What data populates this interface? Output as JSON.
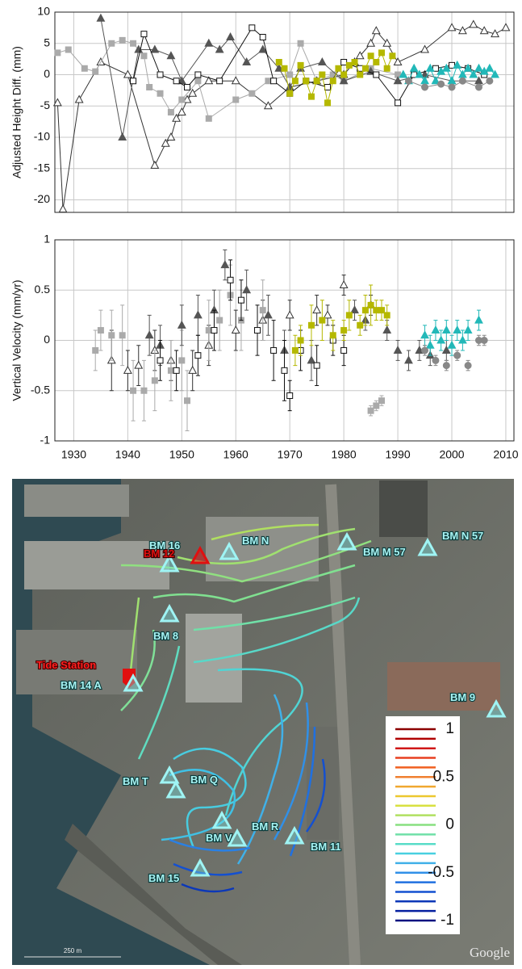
{
  "chart_data": [
    {
      "type": "line",
      "ylabel": "Adjusted Height Diff. (mm)",
      "xlim": [
        1926.5,
        2011.5
      ],
      "xticks": [
        1930,
        1940,
        1950,
        1960,
        1970,
        1980,
        1990,
        2000,
        2010
      ],
      "ylim": [
        -22,
        10
      ],
      "yticks": [
        -20,
        -15,
        -10,
        -5,
        0,
        5,
        10
      ],
      "grid": true,
      "series": [
        {
          "color": "#333333",
          "marker": "triangle-open",
          "x": [
            1927,
            1928,
            1931,
            1935,
            1940,
            1945,
            1947,
            1948,
            1949,
            1950,
            1951,
            1952,
            1955,
            1960,
            1966,
            1970,
            1975,
            1980,
            1982,
            1983,
            1985,
            1986,
            1988,
            1990,
            1995,
            2000,
            2002,
            2004,
            2006,
            2008,
            2010
          ],
          "values": [
            -4.5,
            -21.5,
            -4,
            2,
            0,
            -14.5,
            -11,
            -10,
            -7,
            -6,
            -4,
            -3,
            -1,
            -1,
            -5,
            -2,
            -1,
            0,
            2,
            3,
            5,
            7,
            5,
            2,
            4,
            7.5,
            7,
            8,
            7,
            6.5,
            7.5
          ]
        },
        {
          "color": "#aaaaaa",
          "marker": "square",
          "x": [
            1927,
            1929,
            1932,
            1934,
            1937,
            1939,
            1941,
            1943,
            1944,
            1946,
            1948,
            1950,
            1953,
            1955,
            1960,
            1963,
            1966,
            1970,
            1972,
            1975,
            1978,
            1980,
            1985,
            1990
          ],
          "values": [
            3.5,
            4,
            1,
            0.5,
            5,
            5.5,
            5,
            3,
            -2,
            -3,
            -6,
            -4,
            -1,
            -7,
            -4,
            -3,
            -1,
            0,
            5,
            -1,
            0,
            -1,
            1,
            0
          ]
        },
        {
          "color": "#555555",
          "marker": "triangle",
          "x": [
            1935,
            1939,
            1942,
            1945,
            1948,
            1950,
            1955,
            1957,
            1959,
            1962,
            1965,
            1968,
            1970,
            1972,
            1976,
            1980,
            1985,
            1990,
            1995,
            2000,
            2005
          ],
          "values": [
            9,
            -10,
            4,
            4,
            3,
            -1,
            5,
            4,
            6,
            2,
            4,
            1,
            -2,
            1,
            2,
            -1,
            0.5,
            -1,
            0,
            -1,
            -1
          ]
        },
        {
          "color": "#111111",
          "marker": "square-open",
          "x": [
            1941,
            1943,
            1946,
            1949,
            1951,
            1953,
            1957,
            1963,
            1965,
            1967,
            1970,
            1973,
            1977,
            1980,
            1983,
            1986,
            1990,
            1993,
            1997,
            2000,
            2003,
            2006
          ],
          "values": [
            -1,
            6.5,
            0,
            -1,
            -2,
            0,
            -1,
            7.5,
            6,
            -1,
            -3,
            -1,
            -2,
            2,
            1,
            0,
            -4.5,
            0,
            1,
            1.5,
            1,
            0
          ]
        },
        {
          "color": "#b5b800",
          "marker": "square",
          "x": [
            1968,
            1969,
            1970,
            1971,
            1972,
            1973,
            1974,
            1975,
            1976,
            1977,
            1978,
            1979,
            1980,
            1981,
            1982,
            1983,
            1984,
            1985,
            1986,
            1987,
            1988,
            1989
          ],
          "values": [
            2,
            1,
            -3,
            -1,
            1.5,
            -1,
            -3.5,
            -1,
            0,
            -4.5,
            -1,
            1,
            0,
            1.5,
            2,
            0,
            1,
            3,
            2,
            3.5,
            1,
            3
          ]
        },
        {
          "color": "#22b8b8",
          "marker": "triangle",
          "x": [
            1991,
            1992,
            1993,
            1994,
            1995,
            1996,
            1997,
            1998,
            1999,
            2000,
            2001,
            2002,
            2003,
            2004,
            2005,
            2006,
            2007,
            2008
          ],
          "values": [
            0,
            -1,
            1,
            0,
            -1,
            1,
            -1,
            0.5,
            1,
            -1,
            1.5,
            0,
            1,
            0,
            1,
            0.5,
            1,
            0
          ]
        },
        {
          "color": "#888888",
          "marker": "circle",
          "x": [
            1992,
            1995,
            1998,
            2000,
            2002,
            2005,
            2007
          ],
          "values": [
            -1,
            -2,
            -1.5,
            -2,
            -1,
            -2,
            -1
          ]
        }
      ]
    },
    {
      "type": "errorbar",
      "ylabel": "Vertical Velocity (mm/yr)",
      "xlim": [
        1926.5,
        2011.5
      ],
      "xticks": [
        1930,
        1940,
        1950,
        1960,
        1970,
        1980,
        1990,
        2000,
        2010
      ],
      "ylim": [
        -1,
        1
      ],
      "yticks": [
        -1,
        -0.5,
        0,
        0.5,
        1
      ],
      "grid": true,
      "series": [
        {
          "color": "#333333",
          "marker": "triangle-open",
          "x": [
            1937,
            1940,
            1942,
            1945,
            1948,
            1952,
            1955,
            1960,
            1965,
            1970,
            1975,
            1977,
            1980,
            1985
          ],
          "values": [
            -0.2,
            -0.3,
            -0.25,
            -0.1,
            -0.2,
            -0.3,
            -0.05,
            0.1,
            0.2,
            0.25,
            0.3,
            0.25,
            0.55,
            0.35
          ],
          "errors": [
            0.3,
            0.2,
            0.2,
            0.2,
            0.2,
            0.2,
            0.2,
            0.2,
            0.2,
            0.15,
            0.15,
            0.1,
            0.1,
            0.1
          ]
        },
        {
          "color": "#aaaaaa",
          "marker": "square",
          "x": [
            1934,
            1935,
            1937,
            1939,
            1941,
            1943,
            1945,
            1948,
            1950,
            1951,
            1955,
            1957,
            1959,
            1961,
            1965,
            1985,
            1986,
            1987
          ],
          "values": [
            -0.1,
            0.1,
            0.05,
            0.05,
            -0.5,
            -0.5,
            -0.4,
            -0.3,
            -0.2,
            -0.6,
            0.1,
            0.2,
            0.45,
            0.2,
            0.3,
            -0.7,
            -0.65,
            -0.6
          ],
          "errors": [
            0.2,
            0.2,
            0.25,
            0.3,
            0.3,
            0.3,
            0.3,
            0.3,
            0.3,
            0.3,
            0.3,
            0.3,
            0.3,
            0.3,
            0.3,
            0.05,
            0.05,
            0.05
          ]
        },
        {
          "color": "#555555",
          "marker": "triangle",
          "x": [
            1944,
            1946,
            1950,
            1953,
            1956,
            1958,
            1962,
            1966,
            1969,
            1974,
            1982,
            1984,
            1988,
            1990,
            1992,
            1994,
            1996,
            1999
          ],
          "values": [
            0.05,
            -0.05,
            0.15,
            0.25,
            0.3,
            0.75,
            0.5,
            0.25,
            -0.1,
            -0.2,
            0.3,
            0.2,
            0.1,
            -0.1,
            -0.2,
            -0.1,
            -0.15,
            -0.1
          ],
          "errors": [
            0.2,
            0.2,
            0.2,
            0.2,
            0.2,
            0.15,
            0.2,
            0.2,
            0.2,
            0.2,
            0.1,
            0.1,
            0.1,
            0.1,
            0.1,
            0.1,
            0.1,
            0.1
          ]
        },
        {
          "color": "#111111",
          "marker": "square-open",
          "x": [
            1946,
            1949,
            1953,
            1956,
            1959,
            1961,
            1964,
            1967,
            1969,
            1970,
            1972,
            1975,
            1978,
            1980
          ],
          "values": [
            -0.2,
            -0.3,
            -0.15,
            0.1,
            0.6,
            0.4,
            0.1,
            -0.1,
            -0.3,
            -0.55,
            -0.1,
            -0.25,
            0,
            -0.1
          ],
          "errors": [
            0.2,
            0.2,
            0.2,
            0.2,
            0.2,
            0.2,
            0.25,
            0.3,
            0.3,
            0.15,
            0.2,
            0.2,
            0.15,
            0.15
          ]
        },
        {
          "color": "#b5b800",
          "marker": "square",
          "x": [
            1971,
            1972,
            1974,
            1976,
            1978,
            1980,
            1981,
            1983,
            1984,
            1985,
            1986,
            1987,
            1988
          ],
          "values": [
            -0.1,
            0,
            0.15,
            0.2,
            0.05,
            0.1,
            0.25,
            0.15,
            0.3,
            0.35,
            0.3,
            0.3,
            0.25
          ],
          "errors": [
            0.15,
            0.15,
            0.2,
            0.2,
            0.15,
            0.1,
            0.15,
            0.1,
            0.15,
            0.2,
            0.1,
            0.1,
            0.1
          ]
        },
        {
          "color": "#22b8b8",
          "marker": "triangle",
          "x": [
            1995,
            1996,
            1997,
            1998,
            1999,
            2000,
            2001,
            2002,
            2003,
            2005
          ],
          "values": [
            0.05,
            -0.05,
            0.1,
            0,
            0.1,
            -0.05,
            0.1,
            0,
            0.1,
            0.2
          ],
          "errors": [
            0.1,
            0.1,
            0.1,
            0.1,
            0.1,
            0.1,
            0.1,
            0.1,
            0.1,
            0.1
          ]
        },
        {
          "color": "#888888",
          "marker": "circle",
          "x": [
            1995,
            1997,
            1999,
            2001,
            2003,
            2005,
            2006
          ],
          "values": [
            -0.1,
            -0.2,
            -0.25,
            -0.15,
            -0.25,
            0,
            0
          ],
          "errors": [
            0.05,
            0.05,
            0.05,
            0.05,
            0.05,
            0.05,
            0.05
          ]
        }
      ]
    }
  ],
  "map": {
    "labels": [
      "BM 16",
      "BM N",
      "BM 12",
      "BM M 57",
      "BM N 57",
      "BM 8",
      "Tide Station",
      "BM 14 A",
      "BM 9",
      "BM T",
      "BM Q",
      "BM R",
      "BM V",
      "BM 11",
      "BM 15"
    ],
    "colorbar": {
      "ticks": [
        1,
        0.5,
        0,
        -0.5,
        -1
      ],
      "colors": [
        "#8b0000",
        "#b00000",
        "#d01818",
        "#e84020",
        "#f06020",
        "#f08030",
        "#f0a830",
        "#ecc830",
        "#d8e040",
        "#b0e060",
        "#88e080",
        "#70e0a8",
        "#58dcc8",
        "#48d0e0",
        "#40b0e8",
        "#3090e8",
        "#2070e0",
        "#1450d0",
        "#0c38b8",
        "#0620a0",
        "#001080"
      ]
    },
    "scale": "250 m",
    "credit": "Google"
  }
}
